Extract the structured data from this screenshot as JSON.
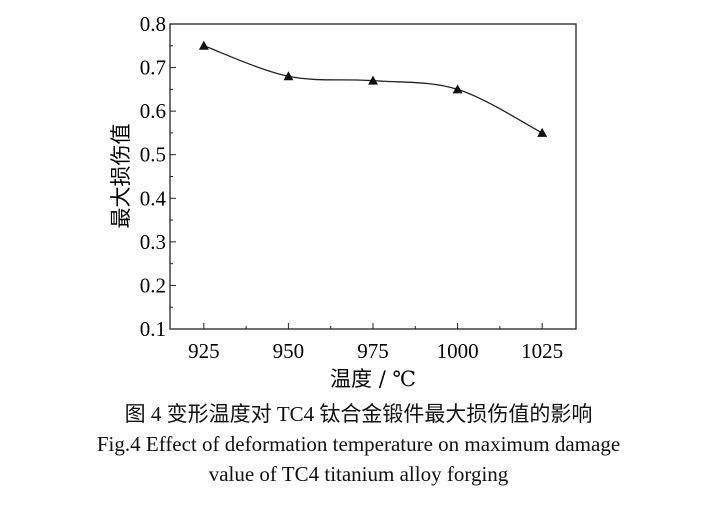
{
  "chart_data": {
    "type": "line",
    "title": "",
    "xlabel": "温度 / ℃",
    "ylabel": "最大损伤值",
    "x": [
      925,
      950,
      975,
      1000,
      1025
    ],
    "series": [
      {
        "values": [
          0.75,
          0.68,
          0.67,
          0.65,
          0.55
        ],
        "marker": "triangle",
        "smooth": true
      }
    ],
    "xlim": [
      915,
      1035
    ],
    "ylim": [
      0.1,
      0.8
    ],
    "xticks": [
      "925",
      "950",
      "975",
      "1000",
      "1025"
    ],
    "yticks": [
      "0.1",
      "0.2",
      "0.3",
      "0.4",
      "0.5",
      "0.6",
      "0.7",
      "0.8"
    ],
    "grid": false,
    "color": "#111111"
  },
  "caption": {
    "zh": "图 4  变形温度对 TC4 钛合金锻件最大损伤值的影响",
    "en_line1": "Fig.4  Effect of deformation temperature on maximum damage",
    "en_line2": "value of TC4 titanium alloy forging"
  }
}
